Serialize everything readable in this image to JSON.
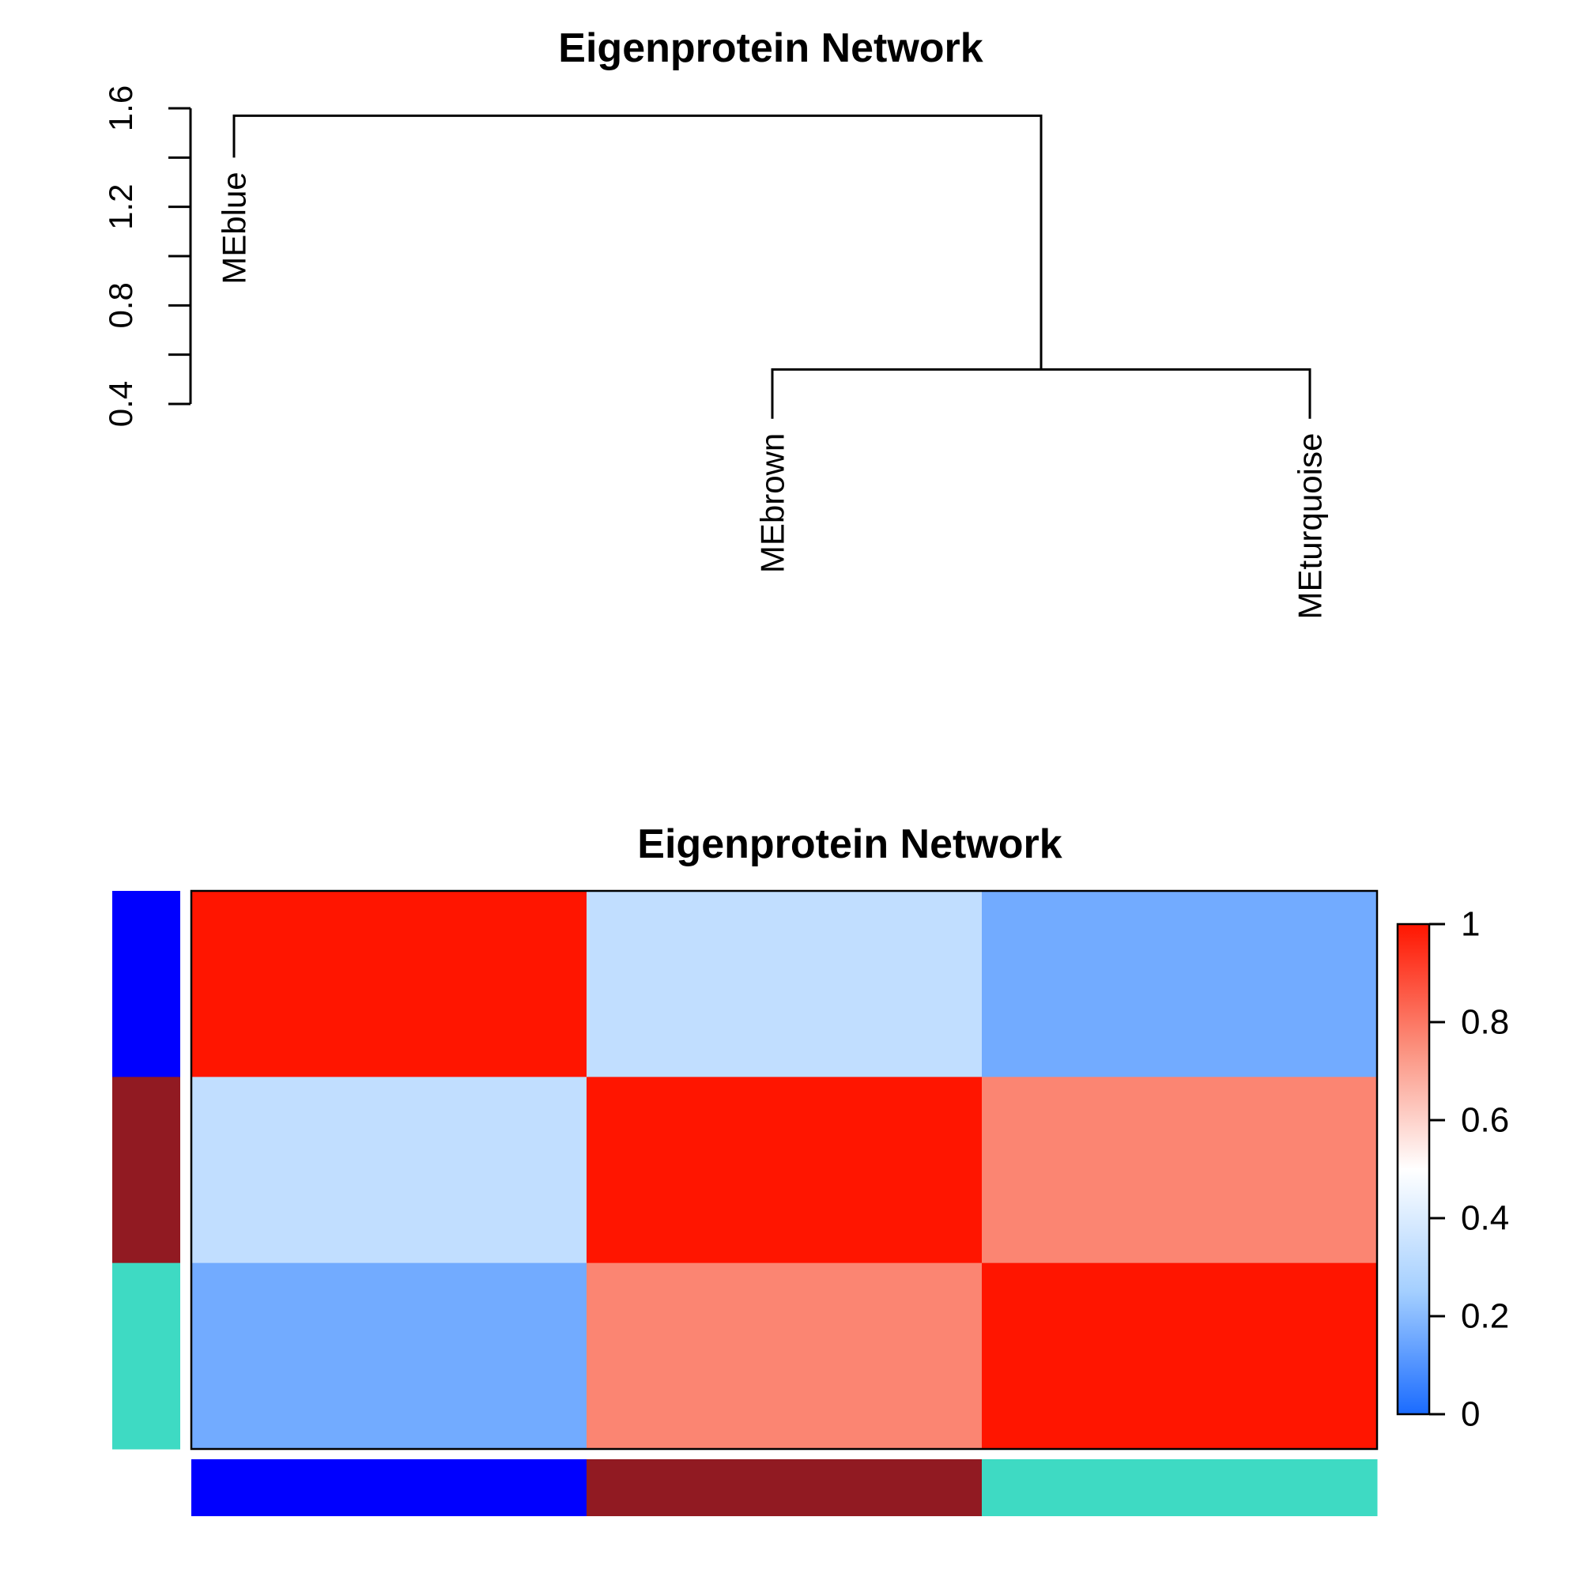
{
  "chart_data": [
    {
      "type": "dendrogram",
      "title": "Eigenprotein Network",
      "y_ticks": [
        "0.4",
        "0.8",
        "1.2",
        "1.6"
      ],
      "y_tick_values": [
        0.4,
        0.8,
        1.2,
        1.6
      ],
      "y_minor_ticks": [
        0.6,
        1.0,
        1.4
      ],
      "ylim": [
        0.4,
        1.6
      ],
      "leaves": [
        {
          "label": "MEblue",
          "value": 1.4
        },
        {
          "label": "MEbrown",
          "value": 0.34
        },
        {
          "label": "MEturquoise",
          "value": 0.34
        }
      ],
      "merges": [
        {
          "left": "MEbrown",
          "right": "MEturquoise",
          "height": 0.54
        },
        {
          "left": "MEblue",
          "right": "MEbrown+MEturquoise",
          "height": 1.57
        }
      ]
    },
    {
      "type": "heatmap",
      "title": "Eigenprotein Network",
      "rows": [
        "MEblue",
        "MEbrown",
        "MEturquoise"
      ],
      "columns": [
        "MEblue",
        "MEbrown",
        "MEturquoise"
      ],
      "values": [
        [
          1.0,
          0.33,
          0.16
        ],
        [
          0.33,
          1.0,
          0.77
        ],
        [
          0.16,
          0.77,
          1.0
        ]
      ],
      "module_colors": [
        "#0000ff",
        "#911a22",
        "#3edac3"
      ],
      "colorbar": {
        "range": [
          0,
          1
        ],
        "ticks": [
          "0",
          "0.2",
          "0.4",
          "0.6",
          "0.8",
          "1"
        ],
        "tick_values": [
          0,
          0.2,
          0.4,
          0.6,
          0.8,
          1.0
        ],
        "stops": [
          "#1a6bff",
          "#a4cfff",
          "#ffffff",
          "#fb8f7c",
          "#ff1500"
        ]
      }
    }
  ]
}
